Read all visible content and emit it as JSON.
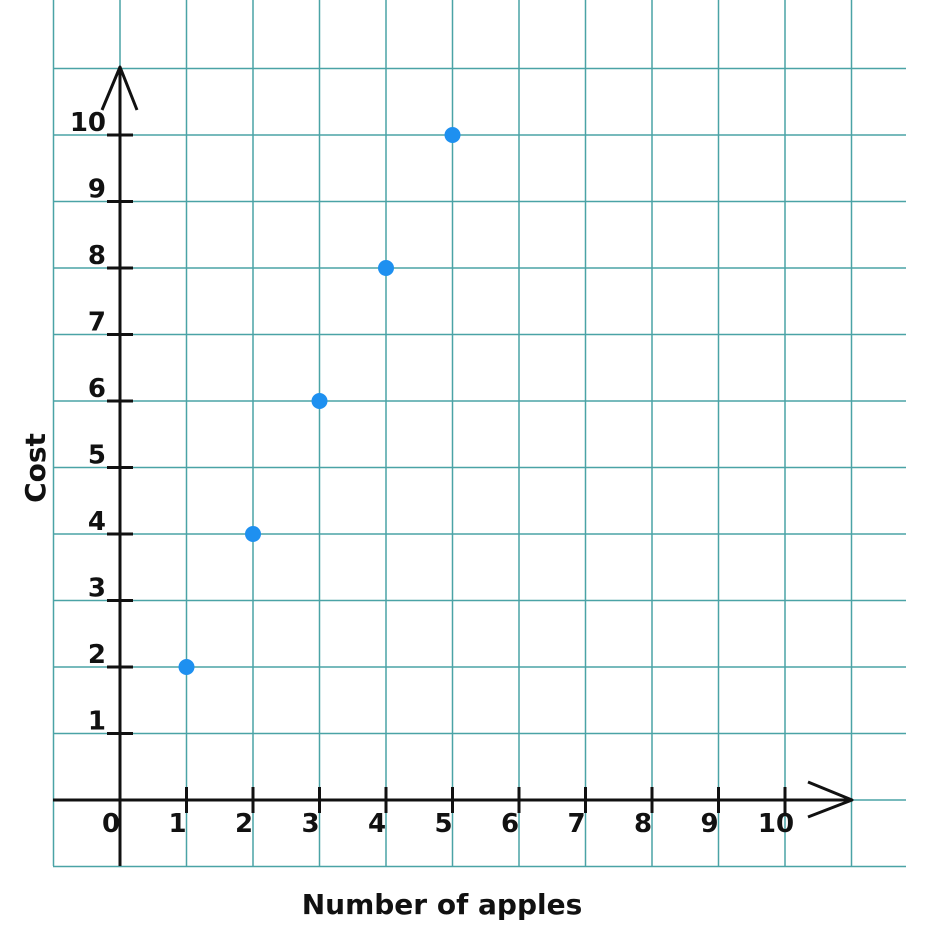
{
  "chart_data": {
    "type": "scatter",
    "title": "",
    "xlabel": "Number of apples",
    "ylabel": "Cost",
    "xlim": [
      0,
      10
    ],
    "ylim": [
      0,
      10
    ],
    "grid": true,
    "x_ticks": [
      "0",
      "1",
      "2",
      "3",
      "4",
      "5",
      "6",
      "7",
      "8",
      "9",
      "10"
    ],
    "y_ticks": [
      "1",
      "2",
      "3",
      "4",
      "5",
      "6",
      "7",
      "8",
      "9",
      "10"
    ],
    "series": [
      {
        "x": [
          1,
          2,
          3,
          4,
          5
        ],
        "y": [
          2,
          4,
          6,
          8,
          10
        ]
      }
    ],
    "colors": {
      "grid": "#4aa3a6",
      "axis": "#111111",
      "point": "#1e90f0"
    }
  }
}
